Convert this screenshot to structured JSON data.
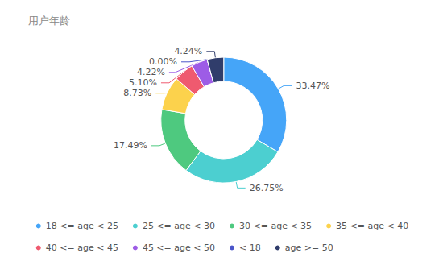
{
  "chart_data": {
    "type": "pie",
    "title": "用户年龄",
    "categories": [
      "18 <= age < 25",
      "25 <= age < 30",
      "30 <= age < 35",
      "35 <= age < 40",
      "40 <= age < 45",
      "45 <= age < 50",
      "< 18",
      "age >= 50"
    ],
    "values": [
      33.47,
      26.75,
      17.49,
      8.73,
      5.1,
      4.22,
      0.0,
      4.24
    ],
    "value_labels": [
      "33.47%",
      "26.75%",
      "17.49%",
      "8.73%",
      "5.10%",
      "4.22%",
      "0.00%",
      "4.24%"
    ],
    "colors": [
      "#45a5f8",
      "#4ccfd0",
      "#4ec97f",
      "#fcd24c",
      "#ef5a6f",
      "#9d5ce6",
      "#4a55c9",
      "#303d6b"
    ],
    "data_labels": true,
    "legend": "bottom"
  }
}
